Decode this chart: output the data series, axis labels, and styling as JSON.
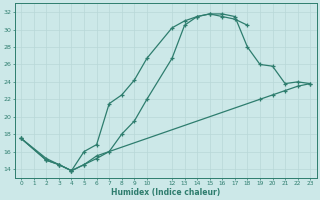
{
  "xlabel": "Humidex (Indice chaleur)",
  "xlim": [
    -0.5,
    23.5
  ],
  "ylim": [
    13.0,
    33.0
  ],
  "yticks": [
    14,
    16,
    18,
    20,
    22,
    24,
    26,
    28,
    30,
    32
  ],
  "xtick_labels": [
    "0",
    "1",
    "2",
    "3",
    "4",
    "5",
    "6",
    "7",
    "8",
    "9",
    "10",
    "12131415161718192021222 3"
  ],
  "background_color": "#cce8e8",
  "line_color": "#2e7d6e",
  "grid_color": "#b8d8d8",
  "line1": {
    "x": [
      0,
      2,
      3,
      4,
      5,
      6,
      7,
      8,
      9,
      10,
      12,
      13,
      14,
      15,
      16,
      17,
      18
    ],
    "y": [
      17.5,
      15.0,
      14.5,
      13.8,
      16.0,
      16.8,
      21.5,
      22.5,
      24.2,
      26.7,
      30.2,
      31.0,
      31.5,
      31.8,
      31.5,
      31.2,
      30.5
    ]
  },
  "line2": {
    "x": [
      0,
      2,
      3,
      4,
      5,
      6,
      7,
      8,
      9,
      10,
      12,
      13,
      14,
      15,
      16,
      17,
      18,
      19,
      20,
      21,
      22,
      23
    ],
    "y": [
      17.5,
      15.0,
      14.5,
      13.8,
      14.5,
      15.2,
      16.0,
      18.0,
      19.5,
      22.0,
      26.7,
      30.5,
      31.5,
      31.8,
      31.8,
      31.5,
      28.0,
      26.0,
      25.8,
      23.8,
      24.0,
      23.8
    ]
  },
  "line3": {
    "x": [
      0,
      2,
      3,
      4,
      5,
      6,
      19,
      20,
      21,
      22,
      23
    ],
    "y": [
      17.5,
      15.2,
      14.5,
      13.8,
      14.5,
      15.5,
      22.0,
      22.5,
      23.0,
      23.5,
      23.8
    ]
  }
}
